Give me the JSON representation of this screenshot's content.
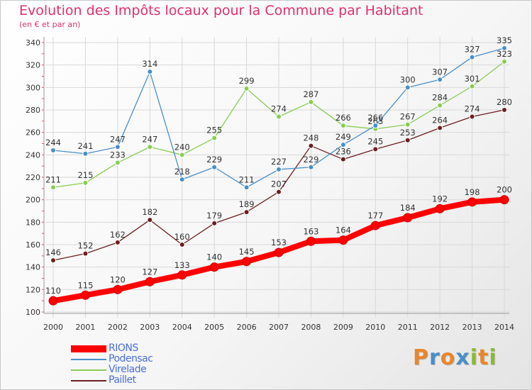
{
  "chart_data": {
    "type": "line",
    "title": "Evolution des Impôts locaux pour la Commune par Habitant",
    "subtitle": "(en € et par an)",
    "xlabel": "",
    "ylabel": "",
    "categories": [
      "2000",
      "2001",
      "2002",
      "2003",
      "2004",
      "2005",
      "2006",
      "2007",
      "2008",
      "2009",
      "2010",
      "2011",
      "2012",
      "2013",
      "2014"
    ],
    "ylim": [
      100,
      340
    ],
    "yticks": [
      100,
      120,
      140,
      160,
      180,
      200,
      220,
      240,
      260,
      280,
      300,
      320,
      340
    ],
    "grid": true,
    "legend_position": "bottom-left",
    "series": [
      {
        "name": "Paillet",
        "color": "#6b1f1f",
        "values": [
          146,
          152,
          162,
          182,
          160,
          179,
          189,
          207,
          248,
          236,
          245,
          253,
          264,
          274,
          280
        ]
      },
      {
        "name": "Virelade",
        "color": "#88cc55",
        "values": [
          211,
          215,
          233,
          247,
          240,
          255,
          299,
          274,
          287,
          266,
          263,
          267,
          284,
          301,
          323
        ]
      },
      {
        "name": "Podensac",
        "color": "#4a8fc8",
        "values": [
          244,
          241,
          247,
          314,
          218,
          229,
          211,
          227,
          229,
          249,
          266,
          300,
          307,
          327,
          335
        ]
      },
      {
        "name": "RIONS",
        "color": "#ff0000",
        "values": [
          110,
          115,
          120,
          127,
          133,
          140,
          145,
          153,
          163,
          164,
          177,
          184,
          192,
          198,
          200
        ]
      }
    ],
    "legend_order": [
      "RIONS",
      "Podensac",
      "Virelade",
      "Paillet"
    ]
  },
  "logo": {
    "text": "Proxiti",
    "colors": [
      "#e8862c",
      "#4a8fc8",
      "#e8862c",
      "#4a8fc8",
      "#88bb33",
      "#e8862c",
      "#88bb33"
    ]
  }
}
